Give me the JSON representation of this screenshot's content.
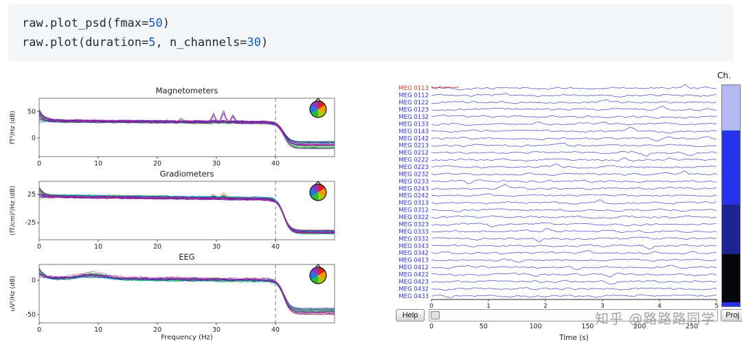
{
  "code": {
    "lines": [
      [
        {
          "t": "raw.plot_psd(fmax=",
          "c": "p"
        },
        {
          "t": "50",
          "c": "n"
        },
        {
          "t": ")",
          "c": "p"
        }
      ],
      [
        {
          "t": "raw.plot(duration=",
          "c": "p"
        },
        {
          "t": "5",
          "c": "n"
        },
        {
          "t": ", n_channels=",
          "c": "p"
        },
        {
          "t": "30",
          "c": "n"
        },
        {
          "t": ")",
          "c": "p"
        }
      ]
    ]
  },
  "colors": {
    "code_bg": "#f4f6f8",
    "code_plain": "#21293a",
    "code_number": "#0a58ca",
    "trace": "#3a3ad1",
    "channel_label": "#2f2fd3",
    "bad_channel": "#cc3b28",
    "dashed_line": "#8a8a8a",
    "watermark": "#949494"
  },
  "chart_data": [
    {
      "type": "line",
      "title": "Magnetometers",
      "ylabel": "fT²/Hz (dB)",
      "xlabel": "",
      "xlim": [
        0,
        50
      ],
      "ylim": [
        -35,
        75
      ],
      "xticks": [
        0,
        10,
        20,
        30,
        40
      ],
      "yticks": [
        50,
        0
      ],
      "cutoff_hz": 40,
      "n_lines": 34,
      "start_level": 45,
      "start_spread": 18,
      "plateau": 32,
      "plateau_end": 29,
      "low_level": -13,
      "low_spread": 7,
      "peaks": [
        {
          "f": 24.0,
          "w": 0.25,
          "a": 5
        },
        {
          "f": 29.5,
          "w": 0.25,
          "a": 14
        },
        {
          "f": 31.2,
          "w": 0.3,
          "a": 18
        },
        {
          "f": 32.8,
          "w": 0.25,
          "a": 12
        }
      ],
      "bump": null
    },
    {
      "type": "line",
      "title": "Gradiometers",
      "ylabel": "(fT/cm)²/Hz (dB)",
      "xlabel": "",
      "xlim": [
        0,
        50
      ],
      "ylim": [
        -55,
        48
      ],
      "xticks": [
        0,
        10,
        20,
        30,
        40
      ],
      "yticks": [
        25,
        -25
      ],
      "cutoff_hz": 40,
      "n_lines": 34,
      "start_level": 30,
      "start_spread": 14,
      "plateau": 22,
      "plateau_end": 17,
      "low_level": -41,
      "low_spread": 4,
      "peaks": [
        {
          "f": 29.5,
          "w": 0.25,
          "a": 4
        },
        {
          "f": 31.2,
          "w": 0.3,
          "a": 5
        }
      ],
      "bump": null
    },
    {
      "type": "line",
      "title": "EEG",
      "ylabel": "uV²/Hz (dB)",
      "xlabel": "Frequency (Hz)",
      "xlim": [
        0,
        50
      ],
      "ylim": [
        -62,
        23
      ],
      "xticks": [
        0,
        10,
        20,
        30,
        40
      ],
      "yticks": [
        0,
        -50
      ],
      "cutoff_hz": 40,
      "n_lines": 22,
      "start_level": 13,
      "start_spread": 10,
      "plateau": 3,
      "plateau_end": 0,
      "low_level": -45,
      "low_spread": 5,
      "peaks": null,
      "bump": {
        "f": 9,
        "w": 2.2,
        "a": 7
      }
    }
  ],
  "raw_browser": {
    "channels": [
      "MEG 0113",
      "MEG 0112",
      "MEG 0122",
      "MEG 0123",
      "MEG 0132",
      "MEG 0133",
      "MEG 0143",
      "MEG 0142",
      "MEG 0213",
      "MEG 0212",
      "MEG 0222",
      "MEG 0223",
      "MEG 0232",
      "MEG 0233",
      "MEG 0243",
      "MEG 0242",
      "MEG 0313",
      "MEG 0312",
      "MEG 0322",
      "MEG 0323",
      "MEG 0333",
      "MEG 0332",
      "MEG 0343",
      "MEG 0342",
      "MEG 0413",
      "MEG 0412",
      "MEG 0422",
      "MEG 0423",
      "MEG 0432",
      "MEG 0433"
    ],
    "bad_channel": "MEG 0113",
    "xlabel": "Time (s)",
    "xticks": [
      0,
      1,
      2,
      3,
      4,
      5
    ],
    "scrollbar_ticks": [
      0,
      50,
      100,
      150,
      200,
      250
    ],
    "ch_label": "Ch.",
    "help_label": "Help",
    "proj_label": "Proj",
    "type_bar_segments": [
      {
        "color": "#b3b9f2",
        "frac": 0.205
      },
      {
        "color": "#2733e8",
        "frac": 0.335
      },
      {
        "color": "#1d2490",
        "frac": 0.225
      },
      {
        "color": "#05060c",
        "frac": 0.215
      },
      {
        "color": "#2733e8",
        "frac": 0.02
      }
    ]
  },
  "watermark": "知乎 @路路路同学"
}
